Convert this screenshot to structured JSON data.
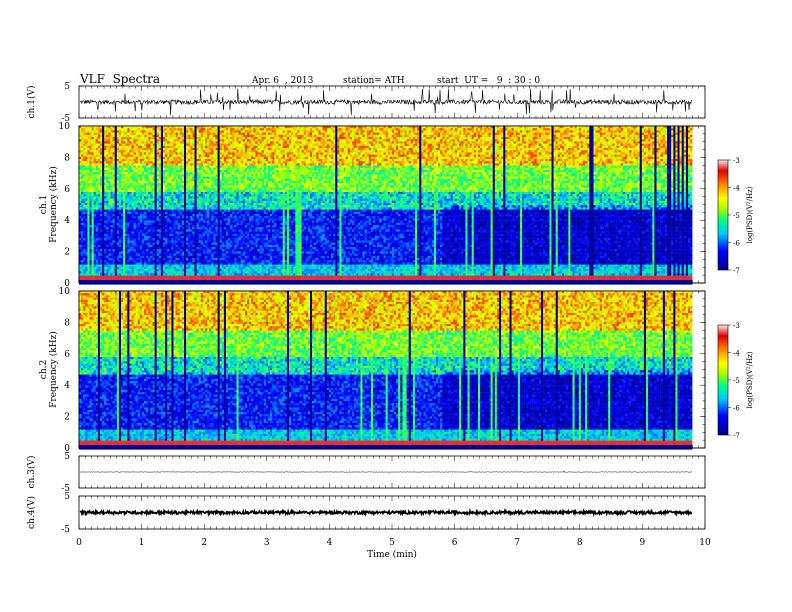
{
  "header": {
    "title": "VLF  Spectra",
    "date": "Apr. 6  , 2013",
    "station": "station= ATH",
    "start": "start  UT =   9  : 30 : 0"
  },
  "chart_data": [
    {
      "type": "line",
      "name": "ch1-waveform",
      "ylabel": "ch.1(V)",
      "ylim": [
        -5,
        5
      ],
      "yticks": [
        "5",
        "-5"
      ],
      "xlim": [
        0,
        10
      ]
    },
    {
      "type": "heatmap",
      "name": "ch1-spectrogram",
      "ylabel_lines": [
        "ch.1",
        "Frequency  (kHz)"
      ],
      "ylim": [
        0,
        10
      ],
      "yticks": [
        "0",
        "2",
        "4",
        "6",
        "8",
        "10"
      ],
      "xlim": [
        0,
        10
      ],
      "data_extent_min": 9.8,
      "colorbar": {
        "label": "log(PSD)(V²/Hz)",
        "range": [
          -7,
          -3
        ],
        "ticks": [
          "-7",
          "-6",
          "-5",
          "-4",
          "-3"
        ]
      }
    },
    {
      "type": "heatmap",
      "name": "ch2-spectrogram",
      "ylabel_lines": [
        "ch.2",
        "Frequency  (kHz)"
      ],
      "ylim": [
        0,
        10
      ],
      "yticks": [
        "0",
        "2",
        "4",
        "6",
        "8",
        "10"
      ],
      "xlim": [
        0,
        10
      ],
      "data_extent_min": 9.8,
      "colorbar": {
        "label": "log(PSD)(V²/Hz)",
        "range": [
          -7,
          -3
        ],
        "ticks": [
          "-7",
          "-6",
          "-5",
          "-4",
          "-3"
        ]
      }
    },
    {
      "type": "line",
      "name": "ch3-waveform",
      "ylabel": "ch.3(V)",
      "ylim": [
        -5,
        5
      ],
      "yticks": [
        "5",
        "-5"
      ],
      "xlim": [
        0,
        10
      ]
    },
    {
      "type": "line",
      "name": "ch4-waveform",
      "ylabel": "ch.4(V)",
      "ylim": [
        -5,
        5
      ],
      "yticks": [
        "5",
        "-5"
      ],
      "xlim": [
        0,
        10
      ],
      "xticks": [
        "0",
        "1",
        "2",
        "3",
        "4",
        "5",
        "6",
        "7",
        "8",
        "9",
        "10"
      ],
      "xlabel": "Time  (min)"
    }
  ]
}
